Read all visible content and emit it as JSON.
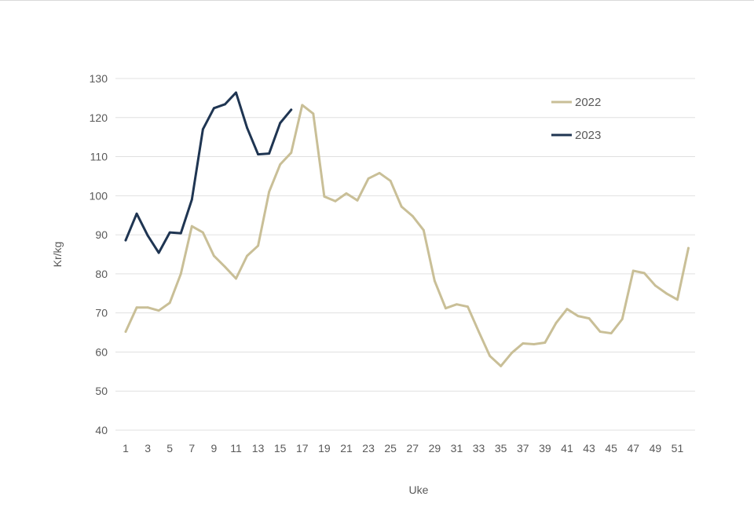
{
  "chart_data": {
    "type": "line",
    "title": "",
    "xlabel": "Uke",
    "ylabel": "Kr/kg",
    "ylim": [
      40,
      130
    ],
    "xlim": [
      1,
      52
    ],
    "yticks": [
      40,
      50,
      60,
      70,
      80,
      90,
      100,
      110,
      120,
      130
    ],
    "xticks": [
      1,
      3,
      5,
      7,
      9,
      11,
      13,
      15,
      17,
      19,
      21,
      23,
      25,
      27,
      29,
      31,
      33,
      35,
      37,
      39,
      41,
      43,
      45,
      47,
      49,
      51
    ],
    "grid": "horizontal",
    "legend_position": "top-right",
    "series": [
      {
        "name": "2022",
        "color": "#c9bf97",
        "x": [
          1,
          2,
          3,
          4,
          5,
          6,
          7,
          8,
          9,
          10,
          11,
          12,
          13,
          14,
          15,
          16,
          17,
          18,
          19,
          20,
          21,
          22,
          23,
          24,
          25,
          26,
          27,
          28,
          29,
          30,
          31,
          32,
          33,
          34,
          35,
          36,
          37,
          38,
          39,
          40,
          41,
          42,
          43,
          44,
          45,
          46,
          47,
          48,
          49,
          50,
          51,
          52
        ],
        "values": [
          65.2,
          71.4,
          71.4,
          70.6,
          72.6,
          80,
          92.2,
          90.6,
          84.6,
          81.8,
          78.8,
          84.6,
          87.2,
          101,
          108,
          111,
          123.2,
          121,
          99.8,
          98.6,
          100.6,
          98.8,
          104.4,
          105.8,
          103.8,
          97.2,
          94.8,
          91.2,
          78.2,
          71.2,
          72.2,
          71.6,
          65.2,
          59,
          56.4,
          59.8,
          62.2,
          62,
          62.4,
          67.4,
          71,
          69.2,
          68.6,
          65.2,
          64.8,
          68.4,
          80.8,
          80.2,
          77,
          75,
          73.4,
          86.6
        ]
      },
      {
        "name": "2023",
        "color": "#1f3552",
        "x": [
          1,
          2,
          3,
          4,
          5,
          6,
          7,
          8,
          9,
          10,
          11,
          12,
          13,
          14,
          15,
          16
        ],
        "values": [
          88.6,
          95.4,
          89.8,
          85.4,
          90.6,
          90.4,
          99,
          117,
          122.4,
          123.4,
          126.4,
          117.4,
          110.6,
          110.8,
          118.6,
          122
        ]
      }
    ]
  }
}
